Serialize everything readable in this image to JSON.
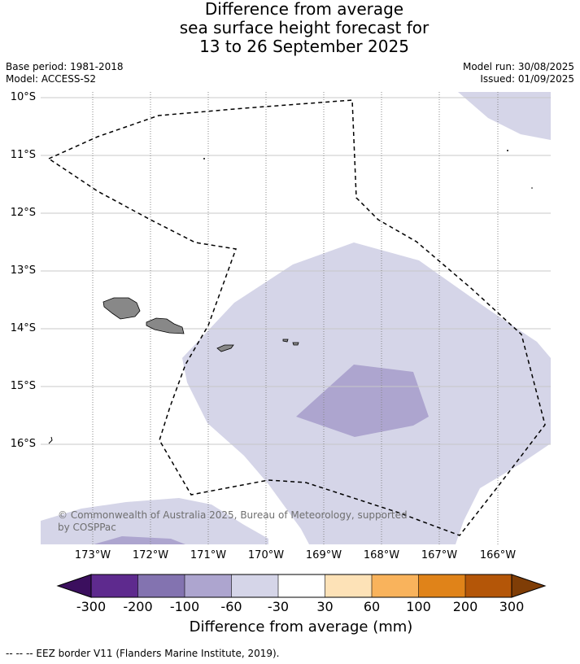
{
  "title": {
    "line1": "Difference from average",
    "line2": "sea surface height forecast for",
    "line3": "13 to 26 September 2025"
  },
  "meta": {
    "base_period": "Base period: 1981-2018",
    "model": "Model: ACCESS-S2",
    "model_run": "Model run: 30/08/2025",
    "issued": "Issued: 01/09/2025"
  },
  "axes": {
    "y_labels": [
      "10°S",
      "11°S",
      "12°S",
      "13°S",
      "14°S",
      "15°S",
      "16°S"
    ],
    "x_labels": [
      "173°W",
      "172°W",
      "171°W",
      "170°W",
      "169°W",
      "168°W",
      "167°W",
      "166°W"
    ],
    "grid": "dotted longitude lines, solid latitude lines"
  },
  "copyright": "© Commonwealth of Australia 2025, Bureau of Meteorology, supported by COSPPac",
  "colorbar": {
    "ticks": [
      "-300",
      "-200",
      "-100",
      "-60",
      "-30",
      "30",
      "60",
      "100",
      "200",
      "300"
    ],
    "colors": [
      "#3b0f5e",
      "#5e2a8e",
      "#8373b0",
      "#ada5cf",
      "#d5d5e8",
      "#ffffff",
      "#fde2b7",
      "#f9b35c",
      "#e08319",
      "#b45608",
      "#7f3d06"
    ],
    "title": "Difference from average (mm)"
  },
  "legend": {
    "eez": "--  --  -- EEZ border V11 (Flanders Marine Institute, 2019)."
  },
  "map_colors": {
    "light_band": "#d5d5e8",
    "mid_band": "#ada5cf",
    "land": "#888888",
    "eez_line": "#000000"
  }
}
